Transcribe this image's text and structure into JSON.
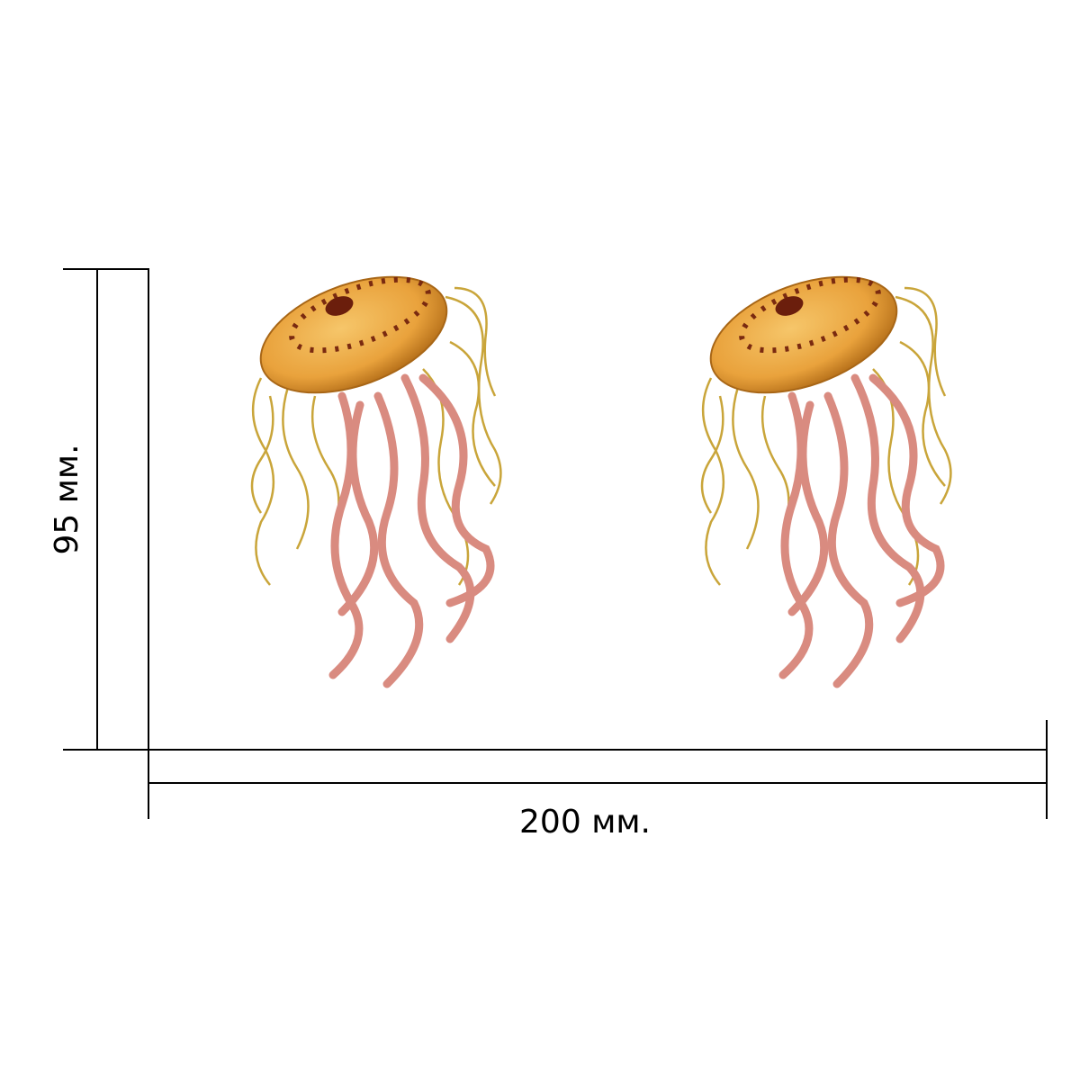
{
  "dimensions": {
    "height_label": "95 мм.",
    "width_label": "200 мм."
  }
}
